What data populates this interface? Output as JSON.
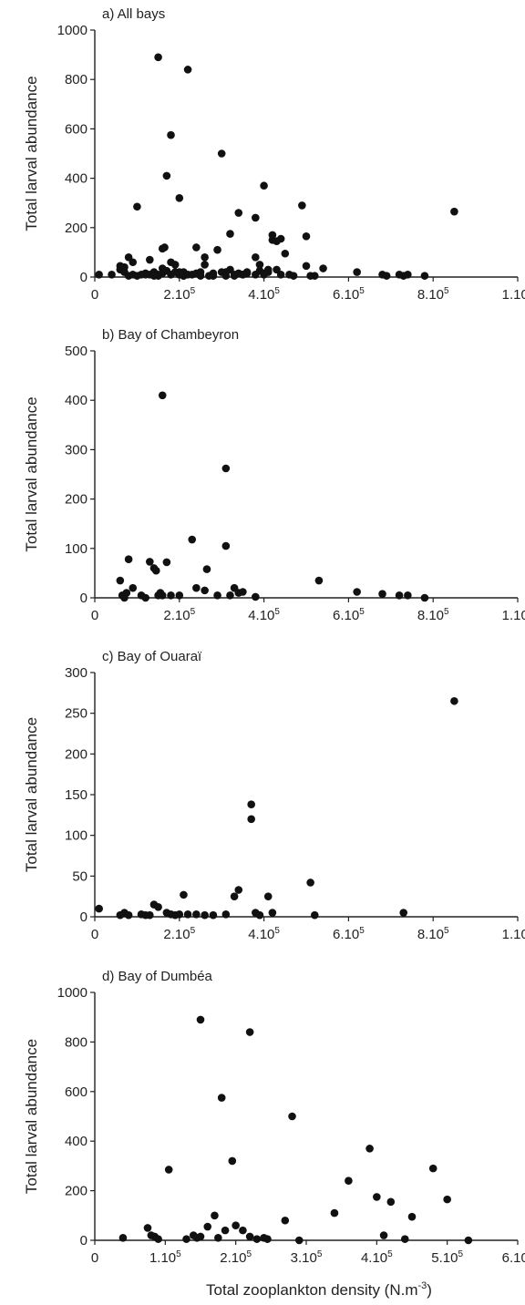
{
  "chart_data": [
    {
      "type": "scatter",
      "panel_label": "a) All bays",
      "ylabel": "Total larval abundance",
      "xlabel": "",
      "x_ticks": [
        "0",
        "2.10^5",
        "4.10^5",
        "6.10^5",
        "8.10^5",
        "1.10^6"
      ],
      "y_ticks": [
        "0",
        "200",
        "400",
        "600",
        "800",
        "1000"
      ],
      "xlim": [
        0,
        1000000
      ],
      "ylim": [
        0,
        1000
      ],
      "series": [
        {
          "x": [
            10000,
            40000,
            60000,
            60000,
            70000,
            80000,
            80000,
            90000,
            100000,
            110000,
            120000,
            130000,
            140000,
            150000,
            150000,
            160000,
            160000,
            165000,
            170000,
            180000,
            180000,
            190000,
            190000,
            200000,
            200000,
            210000,
            210000,
            220000,
            230000,
            240000,
            250000,
            260000,
            270000,
            280000,
            290000,
            300000,
            310000,
            320000,
            330000,
            340000,
            350000,
            360000,
            380000,
            380000,
            390000,
            400000,
            410000,
            410000,
            420000,
            430000,
            440000,
            450000,
            460000,
            470000,
            490000,
            500000,
            510000,
            520000,
            540000,
            620000,
            680000,
            690000,
            720000,
            730000,
            740000,
            780000,
            100000,
            120000,
            130000,
            150000,
            170000,
            180000,
            200000,
            160000,
            220000,
            240000,
            260000,
            300000,
            320000,
            340000,
            380000,
            400000,
            420000,
            440000,
            200000,
            280000,
            330000,
            360000,
            390000,
            430000,
            500000,
            140000,
            70000,
            90000,
            210000,
            250000,
            310000,
            350000,
            400000,
            850000
          ],
          "y": [
            10,
            10,
            30,
            45,
            20,
            80,
            5,
            10,
            5,
            10,
            15,
            70,
            20,
            5,
            10,
            15,
            35,
            120,
            25,
            10,
            60,
            50,
            20,
            10,
            10,
            20,
            5,
            10,
            10,
            15,
            20,
            80,
            5,
            15,
            110,
            20,
            20,
            30,
            10,
            15,
            10,
            20,
            10,
            80,
            50,
            10,
            20,
            30,
            150,
            145,
            10,
            95,
            10,
            5,
            290,
            165,
            5,
            5,
            35,
            20,
            10,
            5,
            10,
            5,
            10,
            5,
            285,
            10,
            10,
            890,
            410,
            575,
            320,
            115,
            840,
            120,
            50,
            500,
            175,
            260,
            240,
            370,
            170,
            155,
            20,
            5,
            5,
            15,
            25,
            30,
            45,
            5,
            40,
            60,
            5,
            5,
            5,
            10,
            15,
            265
          ]
        }
      ]
    },
    {
      "type": "scatter",
      "panel_label": "b) Bay of Chambeyron",
      "ylabel": "Total larval abundance",
      "xlabel": "",
      "x_ticks": [
        "0",
        "2.10^5",
        "4.10^5",
        "6.10^5",
        "8.10^5",
        "1.10^6"
      ],
      "y_ticks": [
        "0",
        "100",
        "200",
        "300",
        "400",
        "500"
      ],
      "xlim": [
        0,
        1000000
      ],
      "ylim": [
        0,
        500
      ],
      "series": [
        {
          "x": [
            60000,
            65000,
            70000,
            75000,
            80000,
            90000,
            110000,
            120000,
            130000,
            140000,
            145000,
            150000,
            155000,
            160000,
            170000,
            180000,
            200000,
            230000,
            240000,
            260000,
            265000,
            290000,
            310000,
            320000,
            330000,
            340000,
            350000,
            380000,
            620000,
            680000,
            720000,
            740000,
            780000,
            160000,
            310000,
            530000
          ],
          "y": [
            35,
            5,
            0,
            10,
            78,
            20,
            5,
            0,
            73,
            60,
            55,
            5,
            10,
            5,
            72,
            5,
            5,
            118,
            20,
            15,
            58,
            5,
            105,
            5,
            20,
            10,
            12,
            2,
            12,
            8,
            5,
            5,
            0,
            410,
            262,
            35
          ]
        }
      ]
    },
    {
      "type": "scatter",
      "panel_label": "c) Bay of Ouaraï",
      "ylabel": "Total larval abundance",
      "xlabel": "",
      "x_ticks": [
        "0",
        "2.10^5",
        "4.10^5",
        "6.10^5",
        "8.10^5",
        "1.10^6"
      ],
      "y_ticks": [
        "0",
        "50",
        "100",
        "150",
        "200",
        "250",
        "300"
      ],
      "xlim": [
        0,
        1000000
      ],
      "ylim": [
        0,
        300
      ],
      "series": [
        {
          "x": [
            10000,
            60000,
            70000,
            80000,
            110000,
            120000,
            130000,
            140000,
            150000,
            170000,
            180000,
            190000,
            200000,
            210000,
            220000,
            240000,
            260000,
            280000,
            310000,
            330000,
            340000,
            380000,
            390000,
            410000,
            420000,
            510000,
            520000,
            730000,
            850000,
            370000,
            370000
          ],
          "y": [
            10,
            2,
            5,
            2,
            3,
            2,
            2,
            15,
            12,
            5,
            3,
            2,
            3,
            27,
            3,
            3,
            2,
            2,
            3,
            25,
            33,
            5,
            2,
            25,
            5,
            42,
            2,
            5,
            265,
            138,
            120
          ]
        }
      ]
    },
    {
      "type": "scatter",
      "panel_label": "d) Bay of Dumbéa",
      "ylabel": "Total larval abundance",
      "xlabel": "Total zooplankton density (N.m-3)",
      "x_ticks": [
        "0",
        "1.10^5",
        "2.10^5",
        "3.10^5",
        "4.10^5",
        "5.10^5",
        "6.10^5"
      ],
      "y_ticks": [
        "0",
        "200",
        "400",
        "600",
        "800",
        "1000"
      ],
      "xlim": [
        0,
        600000
      ],
      "ylim": [
        0,
        1000
      ],
      "series": [
        {
          "x": [
            40000,
            75000,
            80000,
            85000,
            90000,
            105000,
            130000,
            140000,
            145000,
            150000,
            160000,
            170000,
            175000,
            180000,
            185000,
            195000,
            200000,
            210000,
            220000,
            230000,
            240000,
            245000,
            270000,
            280000,
            290000,
            340000,
            360000,
            390000,
            400000,
            410000,
            420000,
            440000,
            450000,
            480000,
            500000,
            530000
          ],
          "y": [
            10,
            50,
            20,
            15,
            5,
            285,
            5,
            20,
            10,
            15,
            55,
            100,
            10,
            575,
            40,
            320,
            60,
            40,
            15,
            5,
            10,
            5,
            80,
            500,
            0,
            110,
            240,
            370,
            175,
            20,
            155,
            5,
            95,
            290,
            165,
            0
          ],
          "extra_x": [
            150000,
            220000
          ],
          "extra_y": [
            890,
            840
          ]
        }
      ]
    }
  ]
}
